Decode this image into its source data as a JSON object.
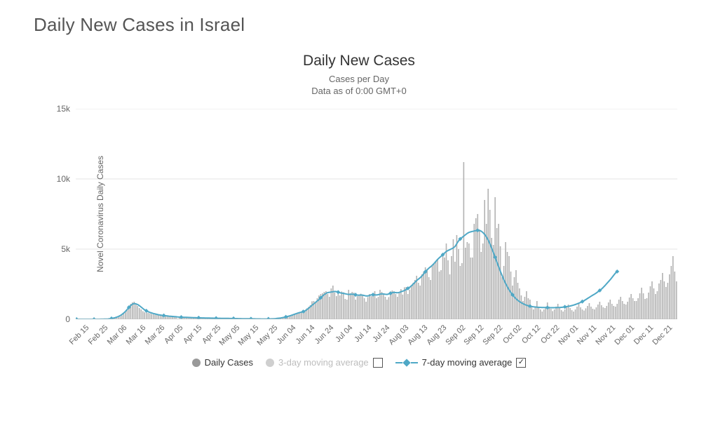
{
  "page_title": "Daily New Cases in Israel",
  "chart": {
    "type": "bar+line",
    "title": "Daily New Cases",
    "subtitle1": "Cases per Day",
    "subtitle2": "Data as of 0:00 GMT+0",
    "y_axis_title": "Novel Coronavirus Daily Cases",
    "background_color": "#ffffff",
    "grid_color": "#e6e6e6",
    "axis_color": "#bfbfbf",
    "bar_color": "#b3b3b3",
    "line_color": "#4fa8c6",
    "line_width": 2,
    "marker_size": 3,
    "text_color": "#666666",
    "ylim": [
      0,
      15000
    ],
    "y_ticks": [
      {
        "value": 0,
        "label": "0"
      },
      {
        "value": 5000,
        "label": "5k"
      },
      {
        "value": 10000,
        "label": "10k"
      },
      {
        "value": 15000,
        "label": "15k"
      }
    ],
    "x_ticks": [
      "Feb 15",
      "Feb 25",
      "Mar 06",
      "Mar 16",
      "Mar 26",
      "Apr 05",
      "Apr 15",
      "Apr 25",
      "May 05",
      "May 15",
      "May 25",
      "Jun 04",
      "Jun 14",
      "Jun 24",
      "Jul 04",
      "Jul 14",
      "Jul 24",
      "Aug 03",
      "Aug 13",
      "Aug 23",
      "Sep 02",
      "Sep 12",
      "Sep 22",
      "Oct 02",
      "Oct 12",
      "Oct 22",
      "Nov 01",
      "Nov 11",
      "Nov 21",
      "Dec 01",
      "Dec 11",
      "Dec 21"
    ],
    "bars": [
      0,
      0,
      0,
      0,
      0,
      0,
      0,
      0,
      0,
      0,
      0,
      0,
      0,
      0,
      2,
      5,
      8,
      12,
      15,
      25,
      40,
      60,
      80,
      120,
      150,
      200,
      280,
      380,
      500,
      650,
      850,
      1100,
      1200,
      1250,
      1100,
      950,
      800,
      700,
      580,
      500,
      480,
      450,
      420,
      380,
      350,
      320,
      300,
      280,
      260,
      250,
      240,
      230,
      210,
      200,
      190,
      180,
      170,
      160,
      50,
      150,
      140,
      135,
      130,
      125,
      120,
      115,
      110,
      105,
      100,
      98,
      96,
      94,
      92,
      90,
      80,
      78,
      76,
      74,
      72,
      70,
      68,
      66,
      64,
      62,
      60,
      58,
      56,
      54,
      52,
      50,
      48,
      46,
      44,
      42,
      40,
      38,
      36,
      34,
      32,
      30,
      28,
      26,
      24,
      22,
      20,
      18,
      17,
      16,
      15,
      16,
      18,
      22,
      28,
      35,
      45,
      58,
      72,
      90,
      110,
      135,
      160,
      190,
      220,
      260,
      300,
      350,
      380,
      400,
      440,
      480,
      490,
      620,
      780,
      880,
      1000,
      1280,
      1300,
      1200,
      1500,
      1700,
      1800,
      1850,
      1950,
      2000,
      1800,
      1600,
      2200,
      2400,
      1900,
      1650,
      1850,
      1700,
      1980,
      1920,
      1450,
      1400,
      2100,
      1850,
      1950,
      1900,
      1400,
      1650,
      1750,
      1820,
      1700,
      1500,
      1250,
      1580,
      1800,
      1650,
      1850,
      2000,
      1500,
      1600,
      2100,
      1950,
      1820,
      1600,
      1400,
      1580,
      1820,
      2050,
      2000,
      1800,
      1600,
      1950,
      2150,
      1760,
      2280,
      2300,
      1800,
      2100,
      2400,
      2600,
      2800,
      3100,
      2600,
      2400,
      3200,
      3400,
      3700,
      3500,
      3000,
      2800,
      3800,
      4000,
      4100,
      4300,
      3400,
      3500,
      4600,
      4400,
      5400,
      4200,
      3200,
      4500,
      5700,
      4100,
      6000,
      5000,
      3800,
      4000,
      11200,
      5100,
      5500,
      5400,
      4400,
      4400,
      6800,
      7200,
      7500,
      6400,
      4800,
      5400,
      8500,
      6800,
      9300,
      7800,
      5800,
      5300,
      8700,
      6500,
      6800,
      5200,
      3000,
      3800,
      5500,
      4800,
      4500,
      3400,
      2400,
      3000,
      3500,
      2600,
      2200,
      1700,
      1300,
      1600,
      2000,
      1500,
      1400,
      900,
      700,
      900,
      1300,
      900,
      700,
      550,
      700,
      900,
      1200,
      900,
      750,
      580,
      700,
      900,
      1100,
      800,
      650,
      550,
      700,
      850,
      1050,
      800,
      650,
      550,
      700,
      900,
      1100,
      850,
      700,
      620,
      780,
      950,
      1150,
      900,
      750,
      700,
      850,
      1050,
      1250,
      1000,
      850,
      800,
      950,
      1200,
      1400,
      1100,
      950,
      900,
      1100,
      1400,
      1600,
      1300,
      1100,
      1050,
      1250,
      1550,
      1800,
      1500,
      1300,
      1300,
      1500,
      1850,
      2250,
      1850,
      1450,
      1500,
      1900,
      2350,
      2700,
      2200,
      1800,
      2000,
      2550,
      2800,
      3300,
      2700,
      2300,
      2600,
      3200,
      3800,
      4500,
      3400,
      2700
    ],
    "line_7day": [
      0,
      0,
      0,
      0,
      0,
      0,
      0,
      0,
      0,
      0,
      0,
      0,
      0,
      0,
      3,
      6,
      10,
      15,
      22,
      35,
      55,
      80,
      110,
      150,
      200,
      260,
      340,
      440,
      560,
      700,
      850,
      980,
      1070,
      1120,
      1100,
      1050,
      970,
      870,
      770,
      670,
      600,
      540,
      490,
      450,
      410,
      380,
      350,
      320,
      300,
      280,
      265,
      250,
      235,
      222,
      210,
      200,
      190,
      180,
      165,
      155,
      150,
      145,
      140,
      135,
      130,
      125,
      120,
      115,
      110,
      106,
      102,
      99,
      96,
      93,
      90,
      87,
      84,
      81,
      78,
      75,
      72,
      70,
      68,
      66,
      64,
      62,
      60,
      58,
      56,
      54,
      52,
      50,
      48,
      46,
      44,
      42,
      40,
      38,
      36,
      34,
      32,
      30,
      28,
      26,
      24,
      23,
      22,
      21,
      20,
      20,
      21,
      24,
      29,
      36,
      46,
      58,
      74,
      92,
      113,
      138,
      166,
      198,
      233,
      272,
      315,
      360,
      405,
      445,
      480,
      510,
      545,
      600,
      680,
      780,
      890,
      1000,
      1100,
      1200,
      1300,
      1400,
      1530,
      1650,
      1760,
      1840,
      1900,
      1920,
      1940,
      1960,
      1980,
      1970,
      1930,
      1890,
      1860,
      1850,
      1820,
      1790,
      1770,
      1780,
      1790,
      1770,
      1740,
      1720,
      1720,
      1730,
      1720,
      1690,
      1660,
      1660,
      1700,
      1740,
      1750,
      1740,
      1730,
      1750,
      1790,
      1810,
      1800,
      1780,
      1770,
      1800,
      1850,
      1900,
      1910,
      1900,
      1890,
      1910,
      1960,
      2000,
      2050,
      2120,
      2200,
      2280,
      2380,
      2500,
      2630,
      2760,
      2860,
      2960,
      3080,
      3230,
      3380,
      3520,
      3640,
      3740,
      3850,
      3980,
      4120,
      4260,
      4380,
      4490,
      4600,
      4720,
      4830,
      4900,
      4960,
      5020,
      5080,
      5180,
      5380,
      5580,
      5720,
      5830,
      5920,
      6020,
      6120,
      6190,
      6230,
      6260,
      6290,
      6320,
      6330,
      6330,
      6280,
      6180,
      6050,
      5870,
      5650,
      5380,
      5080,
      4760,
      4420,
      4080,
      3750,
      3420,
      3110,
      2820,
      2560,
      2320,
      2100,
      1910,
      1740,
      1590,
      1460,
      1350,
      1260,
      1180,
      1110,
      1050,
      1000,
      960,
      930,
      910,
      890,
      875,
      860,
      850,
      845,
      840,
      835,
      830,
      828,
      826,
      825,
      825,
      827,
      830,
      835,
      842,
      852,
      865,
      880,
      898,
      920,
      945,
      975,
      1010,
      1050,
      1095,
      1145,
      1200,
      1260,
      1325,
      1400,
      1480,
      1560,
      1640,
      1720,
      1790,
      1870,
      1960,
      2050,
      2150,
      2270,
      2400,
      2540,
      2680,
      2820,
      2970,
      3130,
      3290,
      3400
    ],
    "legend": {
      "items": [
        {
          "label": "Daily Cases",
          "type": "bar",
          "muted": false,
          "checkbox": null
        },
        {
          "label": "3-day moving average",
          "type": "dot",
          "muted": true,
          "checkbox": false
        },
        {
          "label": "7-day moving average",
          "type": "line",
          "muted": false,
          "checkbox": true
        }
      ]
    }
  }
}
